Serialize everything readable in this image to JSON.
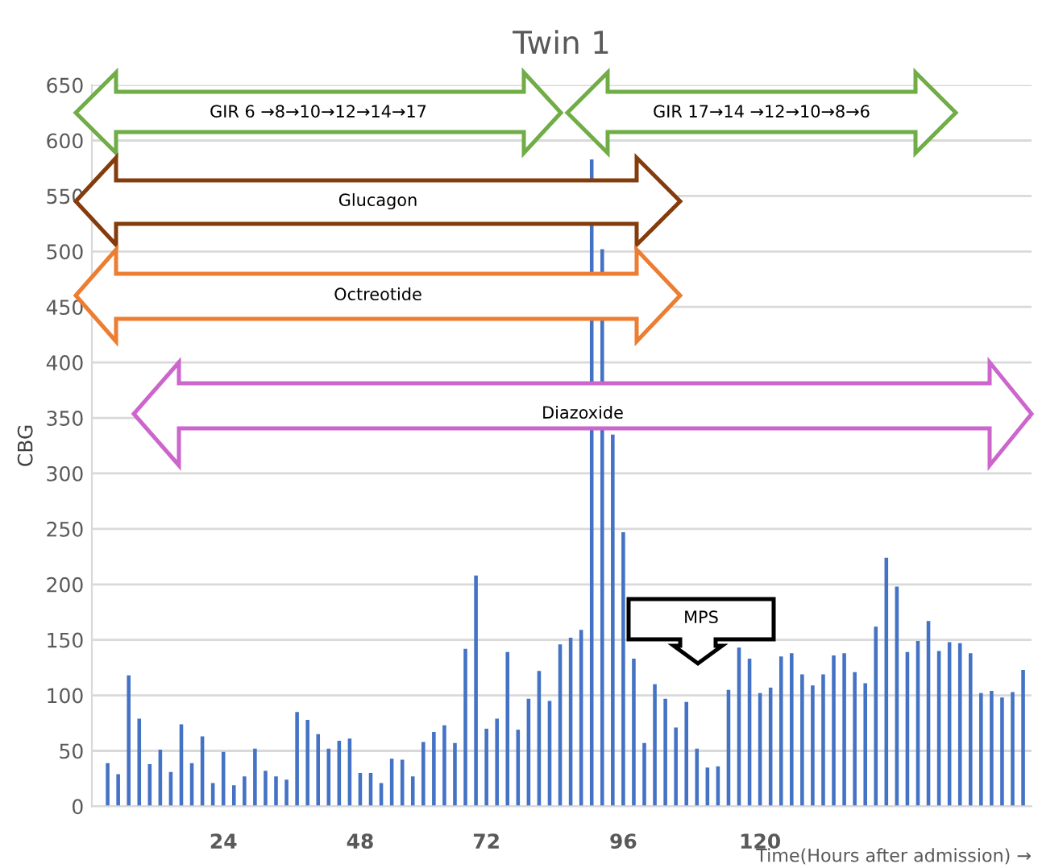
{
  "chart_data": {
    "type": "bar",
    "title": "Twin 1",
    "xlabel": "Time(Hours after admission) →",
    "ylabel": "CBG",
    "categories": [
      null,
      null,
      null,
      null,
      null,
      null,
      null,
      null,
      null,
      null,
      null,
      "24",
      null,
      null,
      null,
      null,
      null,
      null,
      null,
      null,
      null,
      null,
      null,
      null,
      "48",
      null,
      null,
      null,
      null,
      null,
      null,
      null,
      null,
      null,
      null,
      null,
      "72",
      null,
      null,
      null,
      null,
      null,
      null,
      null,
      null,
      null,
      null,
      null,
      null,
      "96",
      null,
      null,
      null,
      null,
      null,
      null,
      null,
      null,
      null,
      null,
      null,
      null,
      "120",
      null,
      null,
      null,
      null,
      null,
      null,
      null,
      null,
      null,
      null,
      null,
      null,
      null,
      null,
      null,
      null,
      null,
      null,
      null,
      null,
      null,
      null,
      null,
      null,
      null
    ],
    "values": [
      39,
      29,
      118,
      79,
      38,
      51,
      31,
      74,
      39,
      63,
      21,
      49,
      19,
      27,
      52,
      32,
      27,
      24,
      85,
      78,
      65,
      52,
      59,
      61,
      30,
      30,
      21,
      43,
      42,
      27,
      58,
      67,
      73,
      57,
      142,
      208,
      70,
      79,
      139,
      69,
      97,
      122,
      95,
      146,
      152,
      159,
      583,
      502,
      335,
      247,
      133,
      57,
      110,
      97,
      71,
      94,
      52,
      35,
      36,
      105,
      143,
      133,
      102,
      107,
      135,
      138,
      119,
      109,
      119,
      136,
      138,
      121,
      111,
      162,
      224,
      198,
      139,
      149,
      167,
      140,
      148,
      147,
      138,
      102,
      104,
      98,
      103,
      123
    ],
    "color": "#4472c4",
    "ylim": [
      0,
      650
    ],
    "yticks": [
      0,
      50,
      100,
      150,
      200,
      250,
      300,
      350,
      400,
      450,
      500,
      550,
      600,
      650
    ],
    "grid": "y",
    "annotations": [
      "GIR 6 →8→10→12→14→17",
      "GIR 17→14 →12→10→8→6",
      "Glucagon",
      "Octreotide",
      "Diazoxide",
      "MPS"
    ]
  }
}
